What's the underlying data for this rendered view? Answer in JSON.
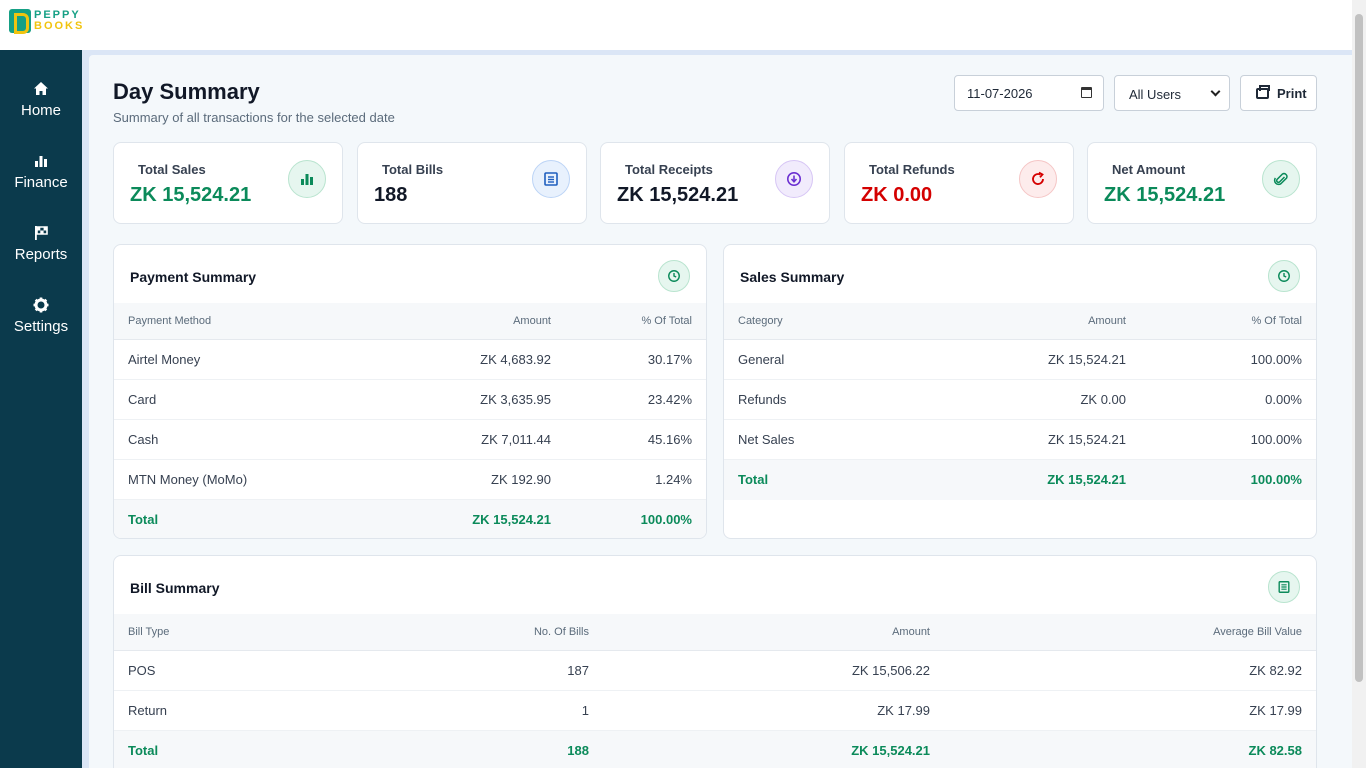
{
  "brand": {
    "line1": "PEPPY",
    "line2": "BOOKS"
  },
  "sidebar": {
    "items": [
      {
        "label": "Home",
        "icon": "home-icon"
      },
      {
        "label": "Finance",
        "icon": "bar-chart-icon"
      },
      {
        "label": "Reports",
        "icon": "flag-icon"
      },
      {
        "label": "Settings",
        "icon": "gear-icon"
      }
    ]
  },
  "page": {
    "title": "Day Summary",
    "subtitle": "Summary of all transactions for the selected date"
  },
  "filters": {
    "date_value": "11-07-2026",
    "user_select": "All Users",
    "print_label": "Print"
  },
  "cards": [
    {
      "label": "Total Sales",
      "value": "ZK 15,524.21",
      "icon": "bar-chart-icon",
      "color": "#0b8a5a"
    },
    {
      "label": "Total Bills",
      "value": "188",
      "icon": "document-list-icon",
      "color": "#111827"
    },
    {
      "label": "Total Receipts",
      "value": "ZK 15,524.21",
      "icon": "download-circle-icon",
      "color": "#111827"
    },
    {
      "label": "Total Refunds",
      "value": "ZK 0.00",
      "icon": "refresh-icon",
      "color": "#d40000"
    },
    {
      "label": "Net Amount",
      "value": "ZK 15,524.21",
      "icon": "paperclip-icon",
      "color": "#0b8a5a"
    }
  ],
  "payment_summary": {
    "title": "Payment Summary",
    "headers": [
      "Payment Method",
      "Amount",
      "% Of Total"
    ],
    "rows": [
      [
        "Airtel Money",
        "ZK 4,683.92",
        "30.17%"
      ],
      [
        "Card",
        "ZK 3,635.95",
        "23.42%"
      ],
      [
        "Cash",
        "ZK 7,011.44",
        "45.16%"
      ],
      [
        "MTN Money (MoMo)",
        "ZK 192.90",
        "1.24%"
      ]
    ],
    "total": [
      "Total",
      "ZK 15,524.21",
      "100.00%"
    ]
  },
  "sales_summary": {
    "title": "Sales Summary",
    "headers": [
      "Category",
      "Amount",
      "% Of Total"
    ],
    "rows": [
      [
        "General",
        "ZK 15,524.21",
        "100.00%"
      ],
      [
        "Refunds",
        "ZK 0.00",
        "0.00%"
      ],
      [
        "Net Sales",
        "ZK 15,524.21",
        "100.00%"
      ]
    ],
    "total": [
      "Total",
      "ZK 15,524.21",
      "100.00%"
    ]
  },
  "bill_summary": {
    "title": "Bill Summary",
    "headers": [
      "Bill Type",
      "No. Of Bills",
      "Amount",
      "Average Bill Value"
    ],
    "rows": [
      [
        "POS",
        "187",
        "ZK 15,506.22",
        "ZK 82.92"
      ],
      [
        "Return",
        "1",
        "ZK 17.99",
        "ZK 17.99"
      ]
    ],
    "total": [
      "Total",
      "188",
      "ZK 15,524.21",
      "ZK 82.58"
    ]
  },
  "colors": {
    "sidebar": "#0b3a4c",
    "accent_green": "#0b8a5a",
    "refund_red": "#d40000",
    "background": "#f4f8fb"
  }
}
